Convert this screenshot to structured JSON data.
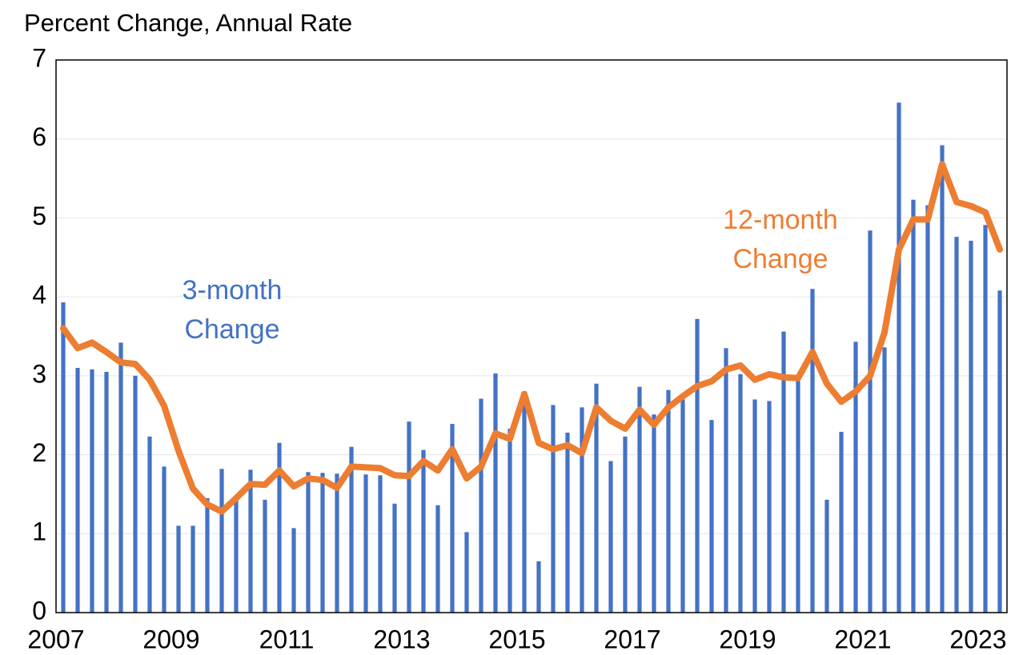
{
  "chart_data": {
    "type": "bar-line",
    "title": "Percent Change, Annual Rate",
    "categories": [
      "2007",
      null,
      null,
      null,
      null,
      null,
      null,
      null,
      "2009",
      null,
      null,
      null,
      null,
      null,
      null,
      null,
      "2011",
      null,
      null,
      null,
      null,
      null,
      null,
      null,
      "2013",
      null,
      null,
      null,
      null,
      null,
      null,
      null,
      "2015",
      null,
      null,
      null,
      null,
      null,
      null,
      null,
      "2017",
      null,
      null,
      null,
      null,
      null,
      null,
      null,
      "2019",
      null,
      null,
      null,
      null,
      null,
      null,
      null,
      "2021",
      null,
      null,
      null,
      null,
      null,
      null,
      null,
      "2023",
      null
    ],
    "series": [
      {
        "name": "3-month Change",
        "type": "bar",
        "color": "#4472c4",
        "values": [
          3.93,
          3.1,
          3.08,
          3.05,
          3.42,
          3.0,
          2.23,
          1.85,
          1.1,
          1.1,
          1.45,
          1.82,
          1.42,
          1.81,
          1.43,
          2.15,
          1.07,
          1.78,
          1.77,
          1.76,
          2.1,
          1.75,
          1.74,
          1.38,
          2.42,
          2.06,
          1.36,
          2.39,
          1.02,
          2.71,
          3.03,
          2.33,
          2.7,
          0.65,
          2.63,
          2.28,
          2.6,
          2.9,
          1.92,
          2.23,
          2.86,
          2.51,
          2.82,
          2.7,
          3.72,
          2.44,
          3.35,
          3.02,
          2.7,
          2.68,
          3.56,
          3.0,
          4.1,
          1.43,
          2.29,
          3.43,
          4.84,
          3.36,
          6.46,
          5.23,
          5.16,
          5.92,
          4.76,
          4.71,
          4.91,
          4.08
        ]
      },
      {
        "name": "12-month Change",
        "type": "line",
        "color": "#ed7d31",
        "values": [
          3.6,
          3.35,
          3.42,
          3.3,
          3.17,
          3.15,
          2.95,
          2.62,
          2.05,
          1.57,
          1.37,
          1.28,
          1.45,
          1.63,
          1.62,
          1.8,
          1.6,
          1.7,
          1.68,
          1.58,
          1.85,
          1.84,
          1.83,
          1.74,
          1.73,
          1.92,
          1.8,
          2.07,
          1.7,
          1.85,
          2.27,
          2.2,
          2.77,
          2.15,
          2.07,
          2.12,
          2.02,
          2.6,
          2.43,
          2.33,
          2.57,
          2.38,
          2.6,
          2.74,
          2.87,
          2.93,
          3.08,
          3.13,
          2.95,
          3.02,
          2.98,
          2.97,
          3.3,
          2.9,
          2.67,
          2.8,
          3.0,
          3.55,
          4.6,
          4.98,
          4.98,
          5.68,
          5.2,
          5.15,
          5.07,
          4.6
        ]
      }
    ],
    "annotations": [
      {
        "lines": [
          "3-month",
          "Change"
        ],
        "color": "#4472c4"
      },
      {
        "lines": [
          "12-month",
          "Change"
        ],
        "color": "#ed7d31"
      }
    ],
    "ylim": [
      0,
      7
    ],
    "yticks": [
      0,
      1,
      2,
      3,
      4,
      5,
      6,
      7
    ],
    "grid": true
  }
}
